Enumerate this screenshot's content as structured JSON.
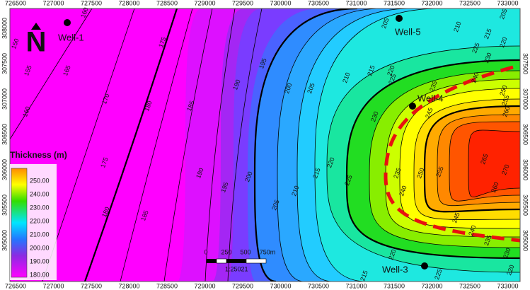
{
  "map": {
    "x_ticks": [
      726500,
      727000,
      727500,
      728000,
      728500,
      729000,
      729500,
      730000,
      730500,
      731000,
      731500,
      732000,
      732500,
      733000
    ],
    "y_ticks": [
      308000,
      307500,
      307000,
      306500,
      306000,
      305500,
      305000
    ],
    "north": "N",
    "wells": [
      {
        "name": "Well-1"
      },
      {
        "name": "Well-5"
      },
      {
        "name": "Well-4"
      },
      {
        "name": "Well-3"
      }
    ],
    "legend": {
      "title": "Thickness (m)",
      "labels": [
        "250.00",
        "240.00",
        "230.00",
        "220.00",
        "210.00",
        "200.00",
        "190.00",
        "180.00"
      ]
    },
    "scale": {
      "labels": [
        "0",
        "250",
        "500",
        "750m"
      ],
      "ratio": "1:25021"
    },
    "contour_labels": [
      "160",
      "150",
      "155",
      "165",
      "175",
      "170",
      "180",
      "185",
      "190",
      "195",
      "200",
      "205",
      "160",
      "175",
      "180",
      "185",
      "190",
      "195",
      "200",
      "205",
      "210",
      "215",
      "220",
      "225",
      "230",
      "235",
      "240",
      "250",
      "255",
      "260",
      "265",
      "270",
      "245",
      "250",
      "255",
      "260",
      "240",
      "235",
      "230",
      "225",
      "220",
      "215",
      "210",
      "205",
      "205",
      "210",
      "215",
      "220",
      "225",
      "215",
      "220",
      "225",
      "230",
      "235",
      "240",
      "245",
      "220"
    ]
  }
}
